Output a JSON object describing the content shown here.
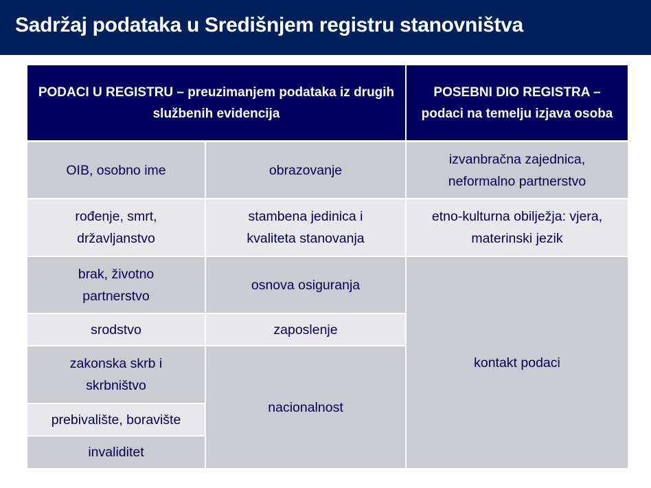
{
  "title": "Sadržaj podataka u Središnjem registru stanovništva",
  "table": {
    "headers": [
      "PODACI U REGISTRU – preuzimanjem podataka iz drugih službenih evidencija",
      "POSEBNI DIO REGISTRA – podaci na temelju izjava osoba"
    ],
    "column1": [
      "OIB, osobno ime",
      "rođenje, smrt, državljanstvo",
      "brak, životno partnerstvo",
      "srodstvo",
      "zakonska skrb i skrbništvo",
      "prebivalište, boravište",
      "invaliditet"
    ],
    "column2": [
      "obrazovanje",
      "stambena jedinica i kvaliteta stanovanja",
      "osnova osiguranja",
      "zaposlenje",
      "nacionalnost"
    ],
    "column3": [
      "izvanbračna zajednica, neformalno partnerstvo",
      "etno-kulturna obilježja: vjera, materinski jezik",
      "kontakt podaci"
    ]
  },
  "colors": {
    "title_bar": "#00205c",
    "header": "#000060",
    "cell_dark": "#cbcbd3",
    "cell_light": "#e8e8ec",
    "text": "#000050"
  }
}
